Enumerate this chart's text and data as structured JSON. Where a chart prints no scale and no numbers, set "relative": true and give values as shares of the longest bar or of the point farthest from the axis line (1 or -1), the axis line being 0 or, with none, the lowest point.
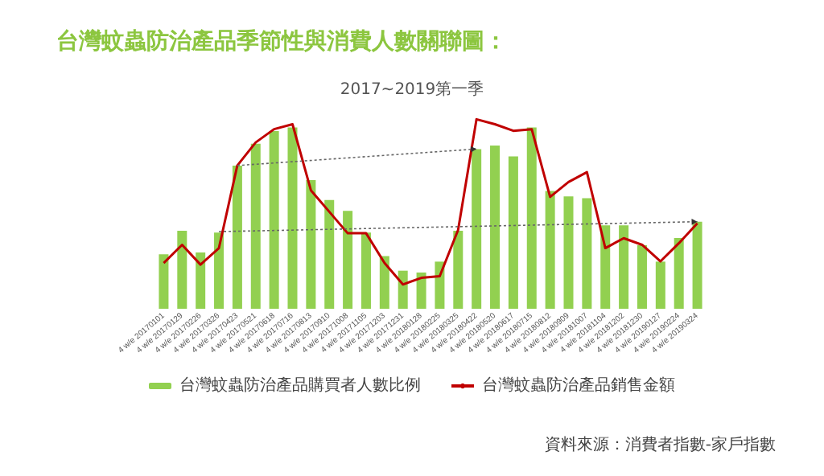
{
  "chart_data": {
    "type": "bar",
    "title": "台灣蚊蟲防治產品季節性與消費人數關聯圖：",
    "subtitle": "2017~2019第一季",
    "categories": [
      "4 w/e 20170101",
      "4 w/e 20170129",
      "4 w/e 20170226",
      "4 w/e 20170326",
      "4 w/e 20170423",
      "4 w/e 20170521",
      "4 w/e 20170618",
      "4 w/e 20170716",
      "4 w/e 20170813",
      "4 w/e 20170910",
      "4 w/e 20171008",
      "4 w/e 20171105",
      "4 w/e 20171203",
      "4 w/e 20171231",
      "4 w/e 20180128",
      "4 w/e 20180225",
      "4 w/e 20180325",
      "4 w/e 20180422",
      "4 w/e 20180520",
      "4 w/e 20180617",
      "4 w/e 20180715",
      "4 w/e 20180812",
      "4 w/e 20180909",
      "4 w/e 20181007",
      "4 w/e 20181104",
      "4 w/e 20181202",
      "4 w/e 20181230",
      "4 w/e 20190127",
      "4 w/e 20190224",
      "4 w/e 20190324"
    ],
    "relative": true,
    "series": [
      {
        "name": "台灣蚊蟲防治產品購買者人數比例",
        "color": "#92d050",
        "values": [
          0.3,
          0.43,
          0.31,
          0.42,
          0.79,
          0.91,
          0.98,
          1,
          0.71,
          0.6,
          0.54,
          0.42,
          0.29,
          0.21,
          0.2,
          0.26,
          0.43,
          0.88,
          0.9,
          0.84,
          1,
          0.65,
          0.62,
          0.61,
          0.46,
          0.46,
          0.35,
          0.26,
          0.39,
          0.48
        ]
      },
      {
        "name": "台灣蚊蟲防治產品銷售金額",
        "type": "line",
        "axis": "y2",
        "color": "#c00000",
        "values": [
          0.13,
          0.24,
          0.12,
          0.22,
          0.72,
          0.86,
          0.94,
          0.97,
          0.57,
          0.44,
          0.31,
          0.31,
          0.13,
          0,
          0.04,
          0.05,
          0.33,
          1,
          0.97,
          0.93,
          0.94,
          0.53,
          0.62,
          0.68,
          0.22,
          0.28,
          0.24,
          0.14,
          0.25,
          0.37
        ]
      }
    ],
    "legend": "bottom",
    "marker": "none",
    "line_style": "solid",
    "grid": false,
    "annotations": [
      "資料來源：消費者指數-家戶指數"
    ]
  }
}
